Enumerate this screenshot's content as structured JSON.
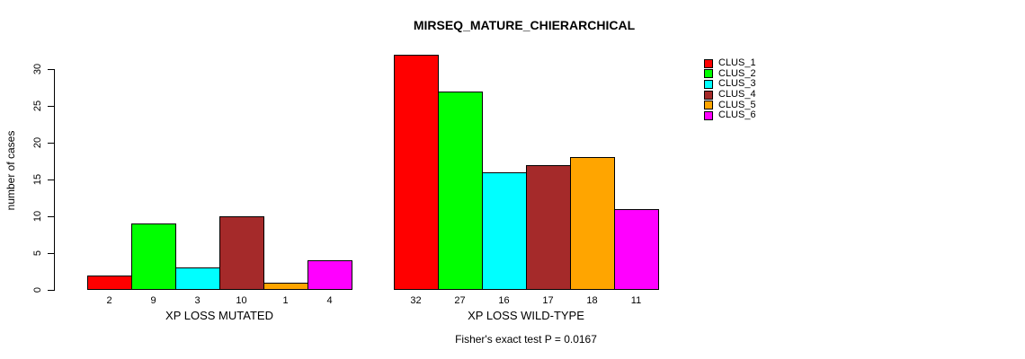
{
  "chart_data": {
    "type": "bar",
    "title": "MIRSEQ_MATURE_CHIERARCHICAL",
    "ylabel": "number of cases",
    "xlabel": "",
    "ylim": [
      0,
      32
    ],
    "yticks": [
      0,
      5,
      10,
      15,
      20,
      25,
      30
    ],
    "grid": false,
    "legend_position": "right-outside",
    "legend_entries": [
      "CLUS_1",
      "CLUS_2",
      "CLUS_3",
      "CLUS_4",
      "CLUS_5",
      "CLUS_6"
    ],
    "series_colors": [
      "#ff0000",
      "#00ff00",
      "#00ffff",
      "#a52a2a",
      "#ffa500",
      "#ff00ff"
    ],
    "groups": [
      {
        "label": "XP LOSS MUTATED",
        "values": [
          2,
          9,
          3,
          10,
          1,
          4
        ]
      },
      {
        "label": "XP LOSS WILD-TYPE",
        "values": [
          32,
          27,
          16,
          17,
          18,
          11
        ]
      }
    ],
    "footnote": "Fisher's exact test P = 0.0167"
  }
}
